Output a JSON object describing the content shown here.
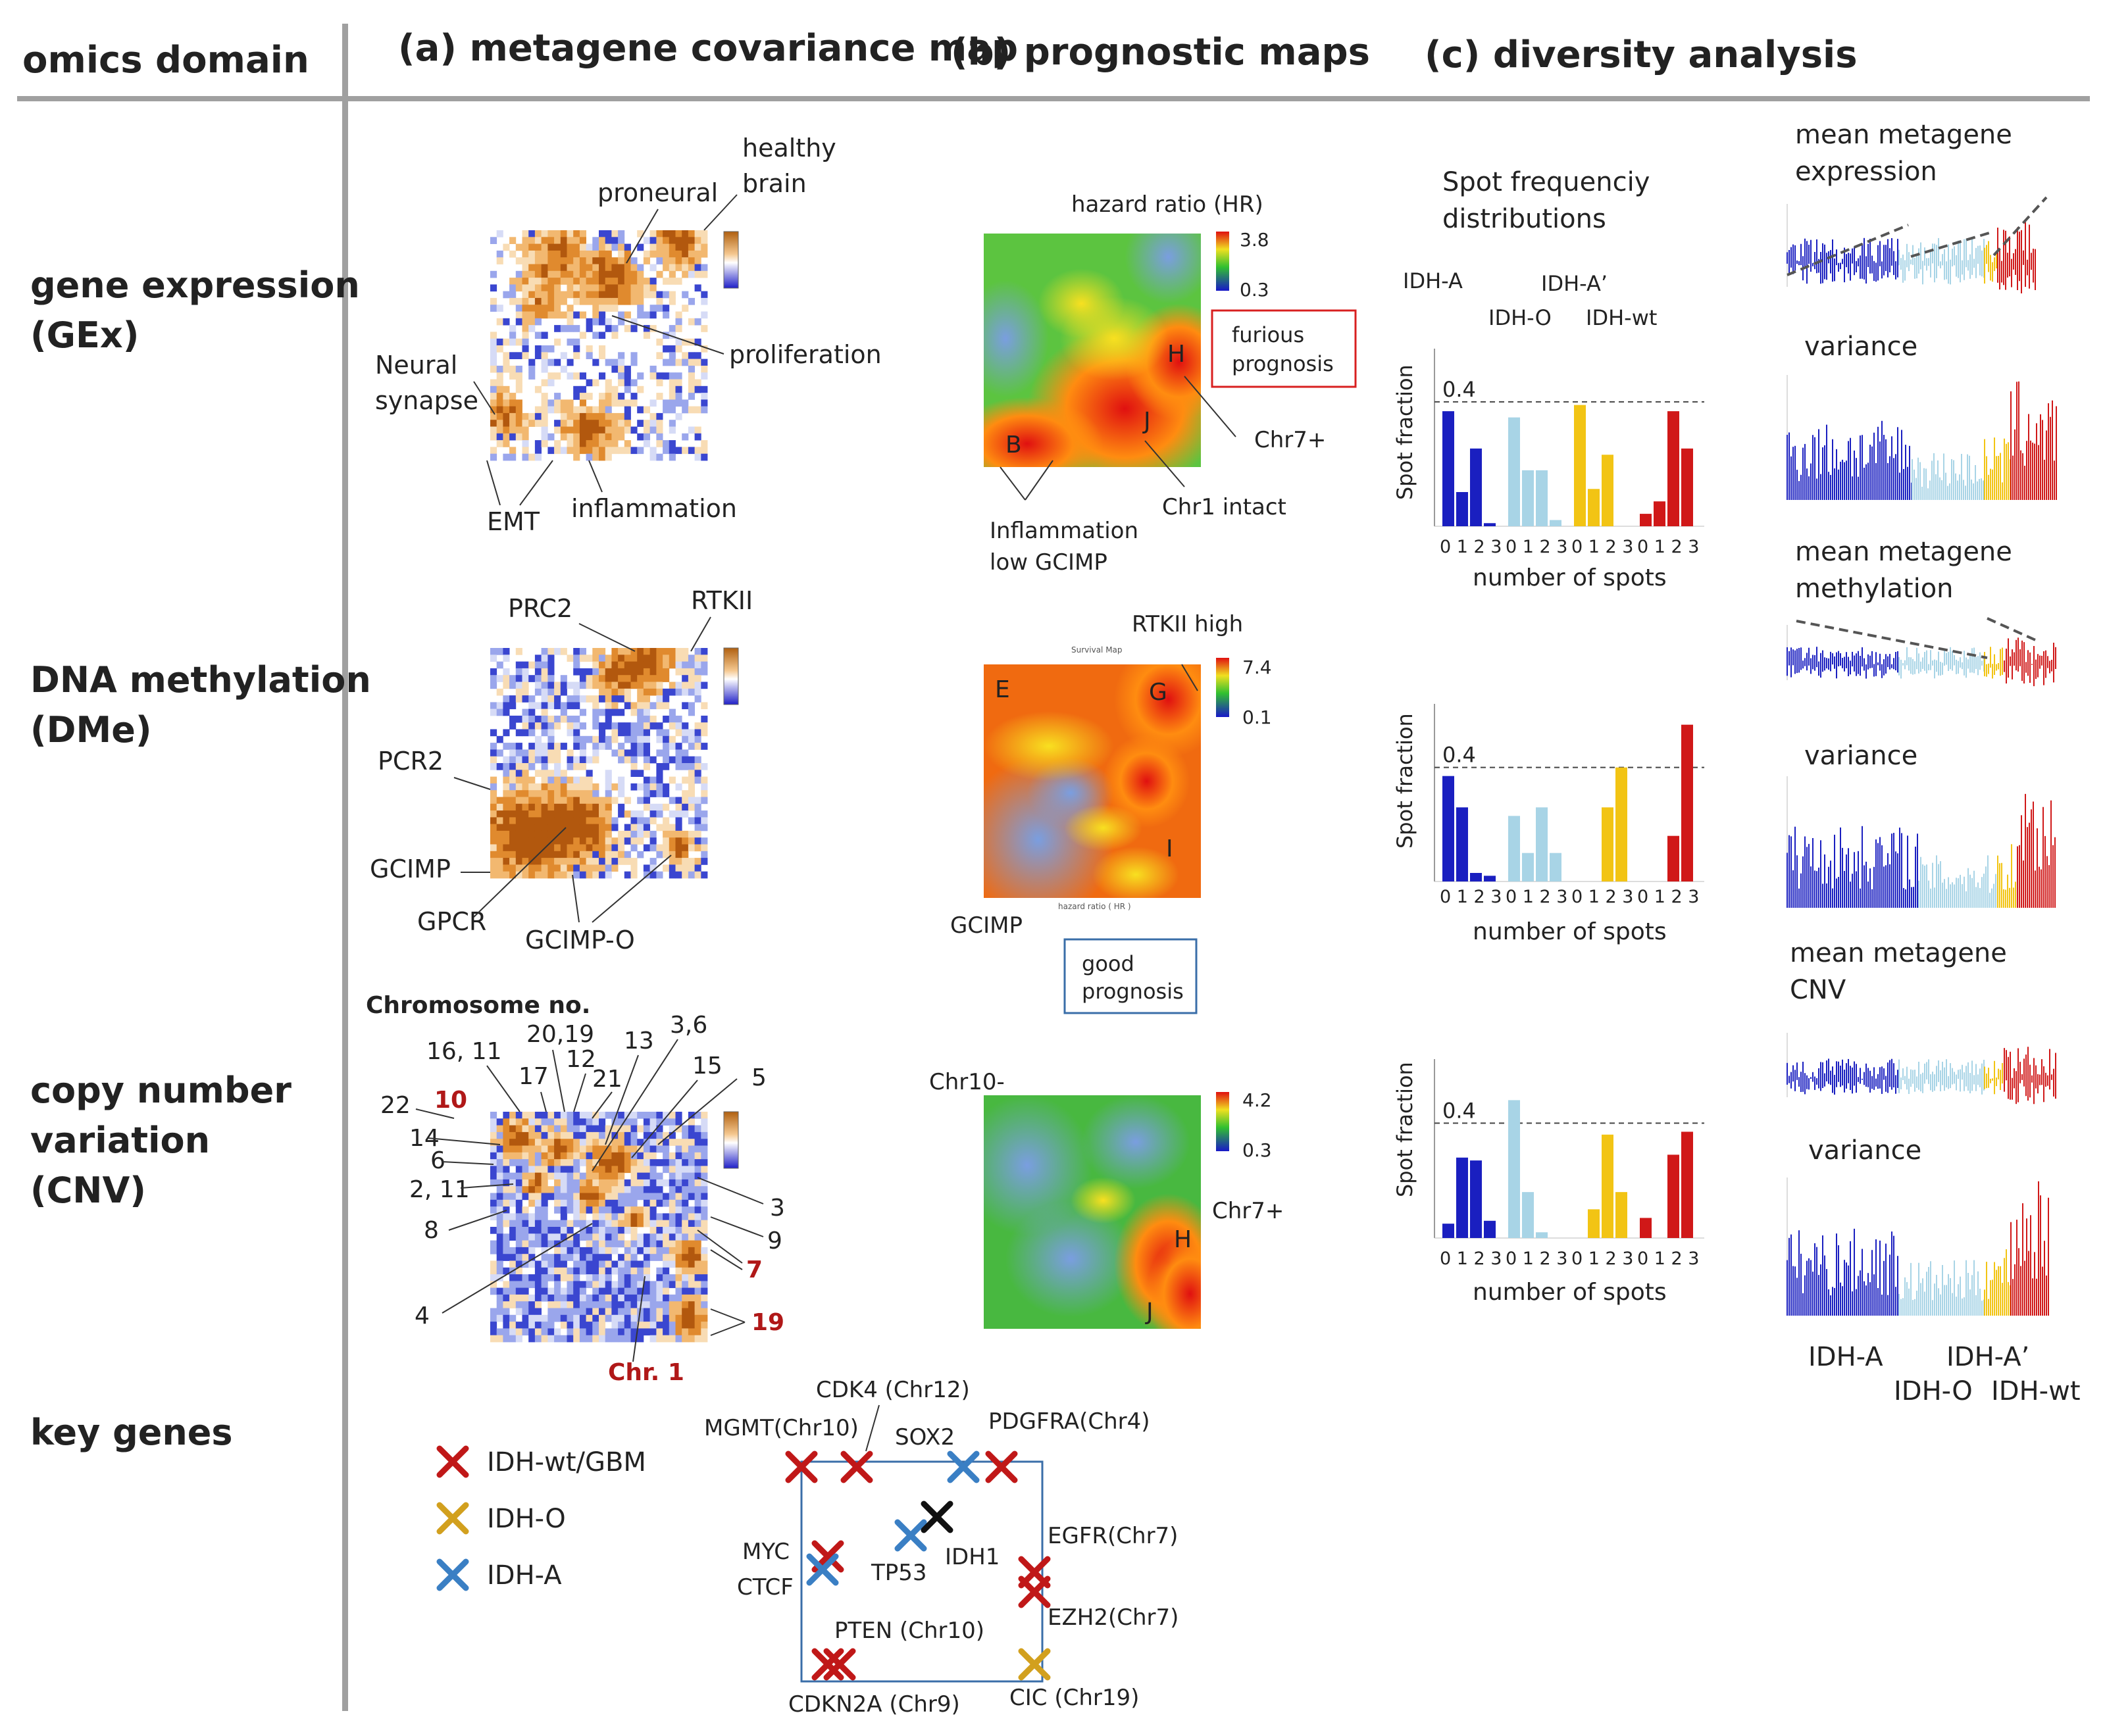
{
  "headers": {
    "omics_domain": "omics domain",
    "a": "(a) metagene covariance map",
    "b": "(b) prognostic maps",
    "c": "(c) diversity analysis"
  },
  "rows": {
    "gex": [
      "gene expression",
      "(GEx)"
    ],
    "dme": [
      "DNA methylation",
      "(DMe)"
    ],
    "cnv": [
      "copy number",
      "variation",
      "(CNV)"
    ],
    "key": "key genes"
  },
  "covariance": {
    "gex": {
      "healthy_brain": [
        "healthy",
        "brain"
      ],
      "proneural": "proneural",
      "proliferation": "proliferation",
      "neural_synapse": [
        "Neural",
        "synapse"
      ],
      "emt": "EMT",
      "inflammation": "inflammation"
    },
    "dme": {
      "prc2": "PRC2",
      "rtkii": "RTKII",
      "pcr2": "PCR2",
      "gcimp": "GCIMP",
      "gpcr": "GPCR",
      "gcimp_o": "GCIMP-O"
    },
    "cnv": {
      "title": "Chromosome no.",
      "labels": [
        "16, 11",
        "20,19",
        "13",
        "3,6",
        "12",
        "17",
        "21",
        "15",
        "5",
        "22",
        "10",
        "14",
        "6",
        "2, 11",
        "8",
        "3",
        "9",
        "7",
        "19",
        "4",
        "Chr. 1"
      ]
    }
  },
  "prognostic": {
    "gex": {
      "title": "hazard ratio (HR)",
      "scale_max": "3.8",
      "scale_min": "0.3",
      "box": [
        "furious",
        "prognosis"
      ],
      "H": "H",
      "J": "J",
      "B": "B",
      "chr7": "Chr7+",
      "chr1": "Chr1 intact",
      "inflammation": [
        "Inflammation",
        "low GCIMP"
      ]
    },
    "dme": {
      "title": "RTKII high",
      "inner_title": "Survival Map",
      "axis_note": "hazard ratio ( HR )",
      "scale_max": "7.4",
      "scale_min": "0.1",
      "E": "E",
      "G": "G",
      "I": "I",
      "gcimp": "GCIMP",
      "box": [
        "good",
        "prognosis"
      ]
    },
    "cnv": {
      "title": "Chr10-",
      "scale_max": "4.2",
      "scale_min": "0.3",
      "chr7": "Chr7+",
      "H": "H",
      "J": "J"
    }
  },
  "diversity": {
    "spot_title": [
      "Spot frequenciy",
      "distributions"
    ],
    "groups_top": [
      "IDH-A",
      "IDH-A’",
      "IDH-O",
      "IDH-wt"
    ],
    "ref_label": "0.4",
    "ylabel": "Spot fraction",
    "xlabel": "number of spots",
    "tick_groups": [
      "0 1 2 3",
      "0 1 2 3",
      "0 1 2 3",
      "0 1 2 3"
    ],
    "right": {
      "gex_mean": [
        "mean metagene",
        "expression"
      ],
      "gex_var": "variance",
      "dme_mean": [
        "mean metagene",
        "methylation"
      ],
      "dme_var": "variance",
      "cnv_mean": [
        "mean metagene",
        "CNV"
      ],
      "cnv_var": "variance",
      "legend": [
        "IDH-A",
        "IDH-A’",
        "IDH-O",
        "IDH-wt"
      ]
    }
  },
  "chart_data": [
    {
      "type": "bar",
      "panel": "gene expression",
      "categories": [
        "0",
        "1",
        "2",
        "3"
      ],
      "xlabel": "number of spots",
      "ylabel": "Spot fraction",
      "reference_line": 0.4,
      "series": [
        {
          "name": "IDH-A",
          "values": [
            0.37,
            0.11,
            0.25,
            0.01
          ]
        },
        {
          "name": "IDH-A’",
          "values": [
            0.35,
            0.18,
            0.18,
            0.02
          ]
        },
        {
          "name": "IDH-O",
          "values": [
            0.39,
            0.12,
            0.23,
            0.0
          ]
        },
        {
          "name": "IDH-wt",
          "values": [
            0.04,
            0.08,
            0.37,
            0.25
          ]
        }
      ],
      "ylim": [
        0,
        0.55
      ]
    },
    {
      "type": "bar",
      "panel": "DNA methylation",
      "categories": [
        "0",
        "1",
        "2",
        "3"
      ],
      "xlabel": "number of spots",
      "ylabel": "Spot fraction",
      "reference_line": 0.4,
      "series": [
        {
          "name": "IDH-A",
          "values": [
            0.37,
            0.26,
            0.03,
            0.02
          ]
        },
        {
          "name": "IDH-A’",
          "values": [
            0.23,
            0.1,
            0.26,
            0.1
          ]
        },
        {
          "name": "IDH-O",
          "values": [
            0.0,
            0.0,
            0.26,
            0.4
          ]
        },
        {
          "name": "IDH-wt",
          "values": [
            0.0,
            0.0,
            0.16,
            0.55
          ]
        }
      ],
      "ylim": [
        0,
        0.6
      ]
    },
    {
      "type": "bar",
      "panel": "copy number variation",
      "categories": [
        "0",
        "1",
        "2",
        "3"
      ],
      "xlabel": "number of spots",
      "ylabel": "Spot fraction",
      "reference_line": 0.4,
      "series": [
        {
          "name": "IDH-A",
          "values": [
            0.05,
            0.28,
            0.27,
            0.06
          ]
        },
        {
          "name": "IDH-A’",
          "values": [
            0.48,
            0.16,
            0.02,
            0.0
          ]
        },
        {
          "name": "IDH-O",
          "values": [
            0.0,
            0.1,
            0.36,
            0.16
          ]
        },
        {
          "name": "IDH-wt",
          "values": [
            0.07,
            0.0,
            0.29,
            0.37
          ]
        }
      ],
      "ylim": [
        0,
        0.6
      ]
    }
  ],
  "key_genes": {
    "legend": [
      "IDH-wt/GBM",
      "IDH-O",
      "IDH-A"
    ],
    "genes": {
      "cdk4": "CDK4 (Chr12)",
      "mgmt": "MGMT(Chr10)",
      "sox2": "SOX2",
      "pdgfra": "PDGFRA(Chr4)",
      "myc": "MYC",
      "ctcf": "CTCF",
      "tp53": "TP53",
      "idh1": "IDH1",
      "egfr": "EGFR(Chr7)",
      "ezh2": "EZH2(Chr7)",
      "pten": "PTEN (Chr10)",
      "cdkn2a": "CDKN2A (Chr9)",
      "cic": "CIC (Chr19)"
    }
  },
  "colors": {
    "idh_a": "#1a1fc0",
    "idh_a2": "#a8d4e6",
    "idh_o": "#f2c414",
    "idh_wt": "#d01818",
    "wt_cross": "#c01818",
    "o_cross": "#d2a01e",
    "a_cross": "#3a7fc4",
    "divider": "#a0a0a0",
    "dark_red_label": "#b01818",
    "good_box": "#3a6ea8",
    "bad_box": "#d82020"
  }
}
